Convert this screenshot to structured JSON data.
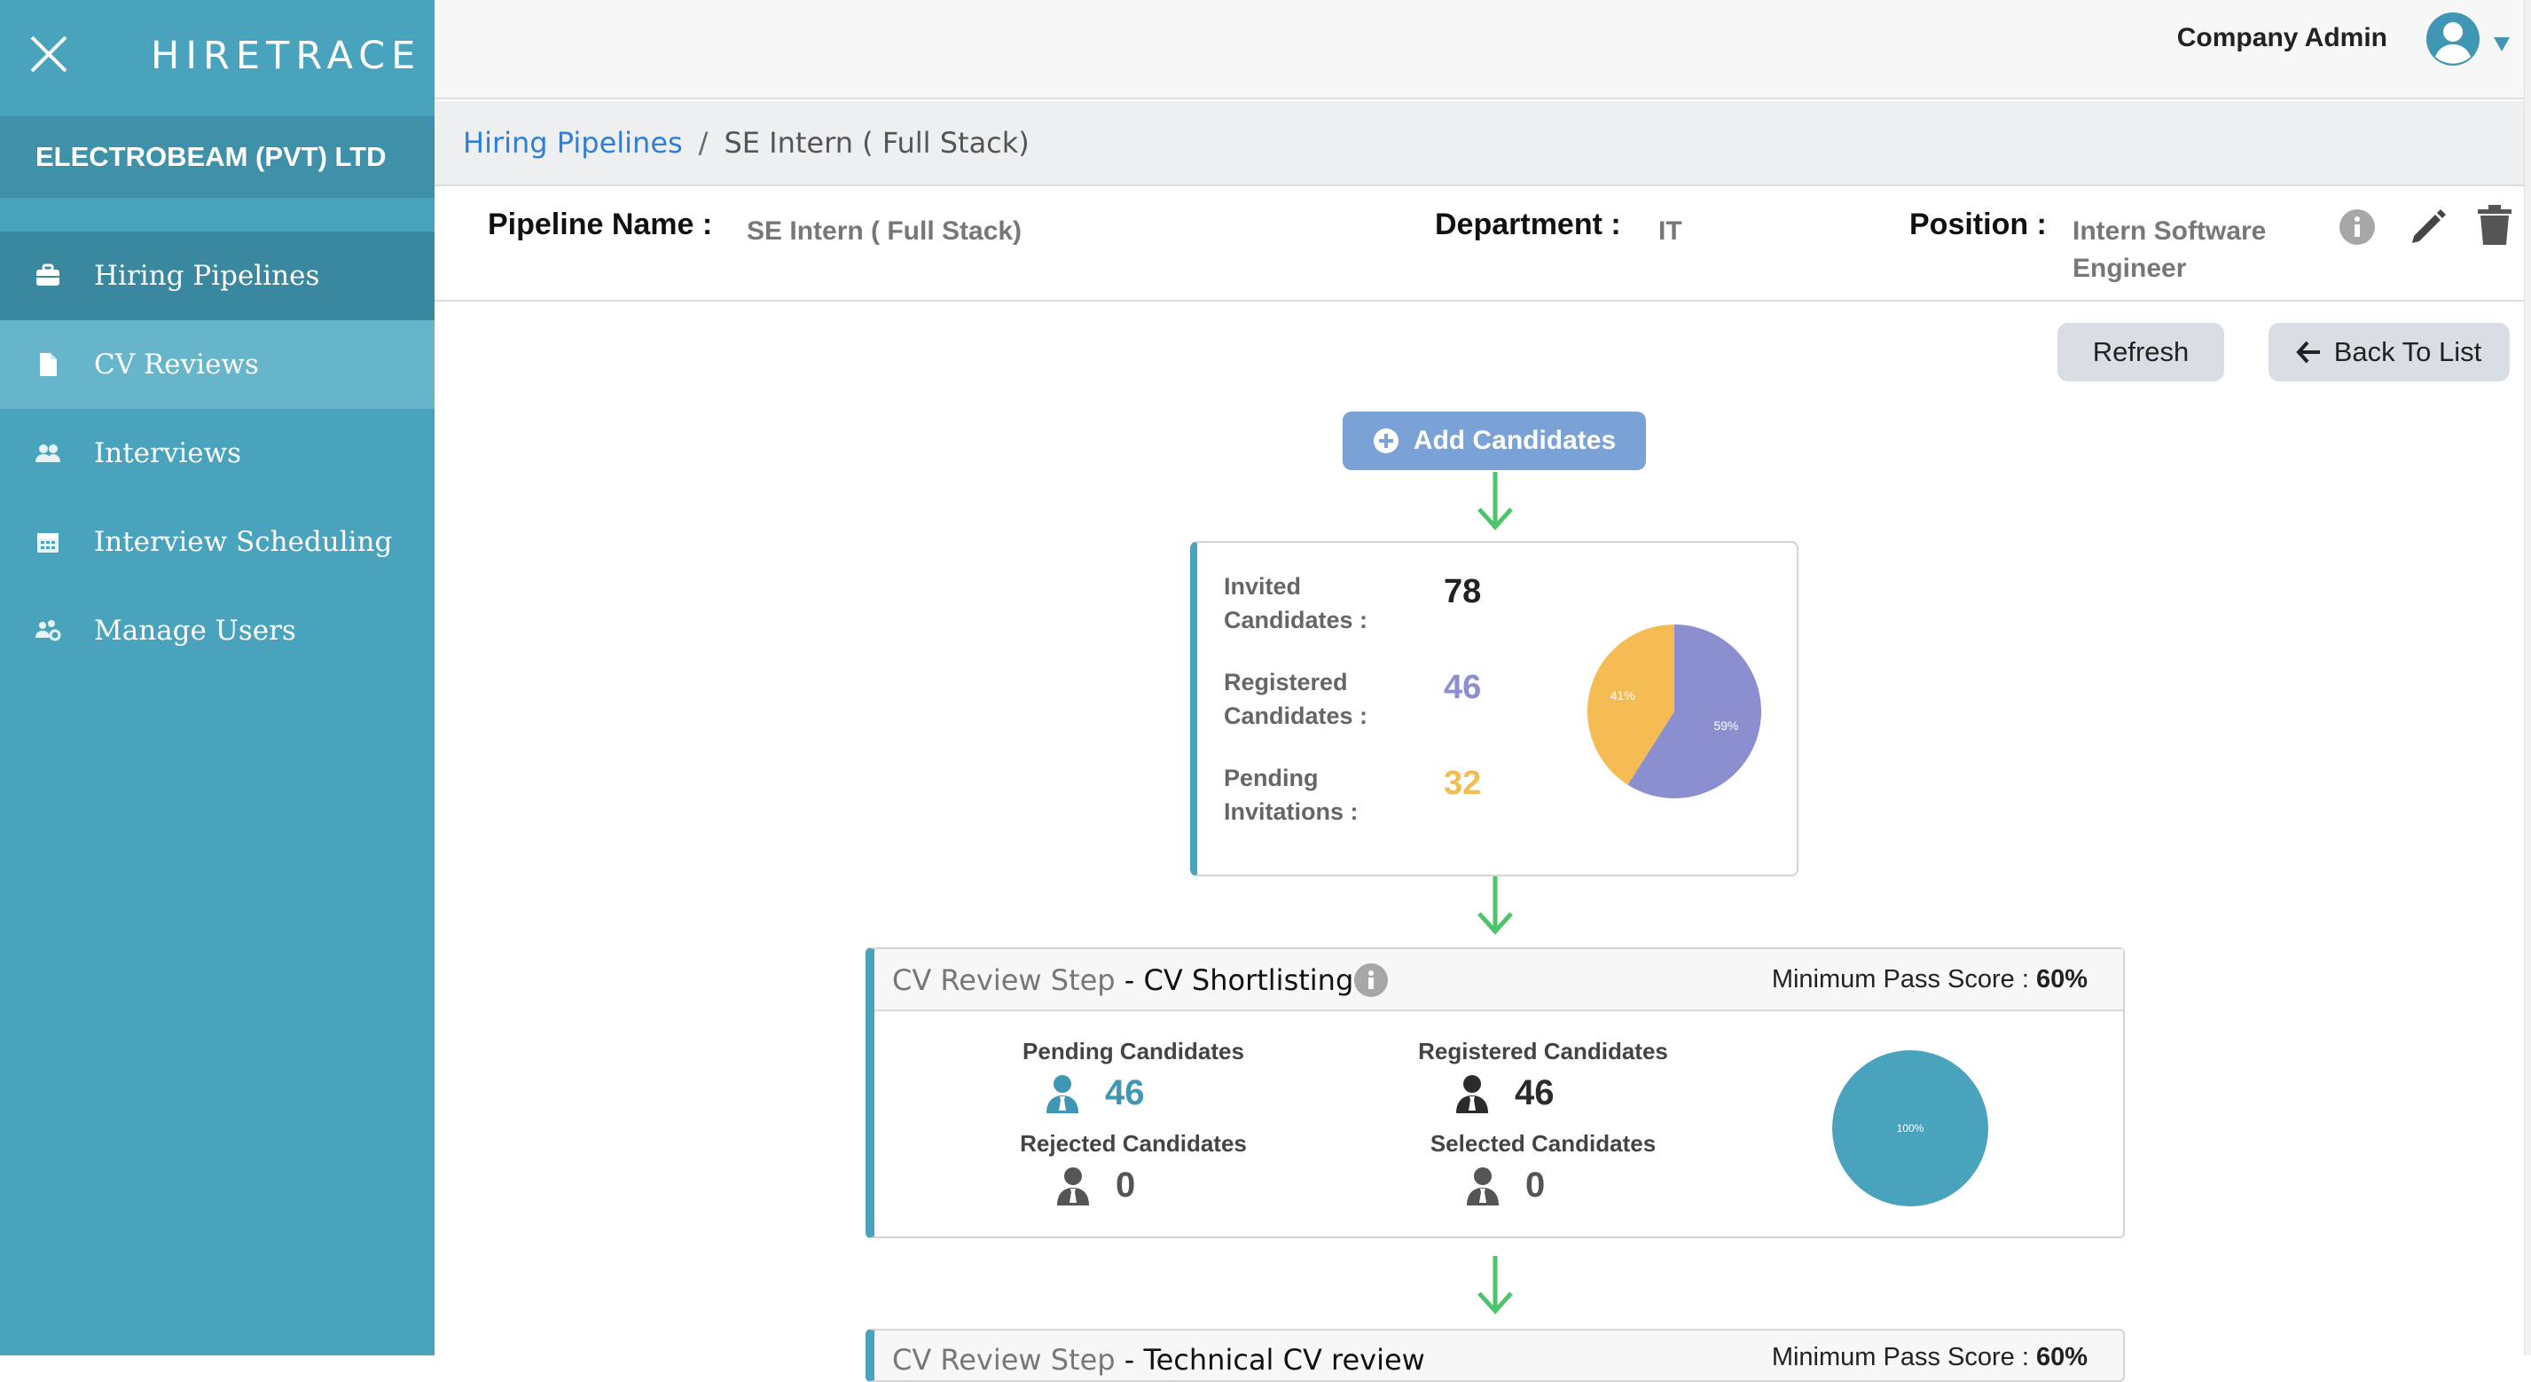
{
  "app": {
    "brand": "HIRETRACE",
    "company": "ELECTROBEAM (PVT) LTD"
  },
  "sidebar": {
    "items": [
      {
        "label": "Hiring Pipelines",
        "icon": "briefcase-icon"
      },
      {
        "label": "CV Reviews",
        "icon": "document-icon"
      },
      {
        "label": "Interviews",
        "icon": "users-icon"
      },
      {
        "label": "Interview Scheduling",
        "icon": "calendar-icon"
      },
      {
        "label": "Manage Users",
        "icon": "users-cog-icon"
      }
    ]
  },
  "header": {
    "user": "Company Admin"
  },
  "breadcrumb": {
    "root": "Hiring Pipelines",
    "separator": "/",
    "current": "SE Intern ( Full Stack)"
  },
  "pipeline": {
    "name_label": "Pipeline Name :",
    "name": "SE Intern ( Full Stack)",
    "department_label": "Department :",
    "department": "IT",
    "position_label": "Position :",
    "position_line1": "Intern Software",
    "position_line2": "Engineer"
  },
  "actions": {
    "refresh": "Refresh",
    "back": "Back To List",
    "add_candidates": "Add Candidates"
  },
  "candidates": {
    "invited_label_1": "Invited",
    "invited_label_2": "Candidates :",
    "invited": "78",
    "registered_label_1": "Registered",
    "registered_label_2": "Candidates :",
    "registered": "46",
    "pending_label_1": "Pending",
    "pending_label_2": "Invitations :",
    "pending": "32",
    "pie": {
      "registered_pct": 59,
      "pending_pct": 41,
      "registered_label": "59%",
      "pending_label": "41%"
    }
  },
  "steps": [
    {
      "prefix": "CV Review Step",
      "name": "- CV Shortlisting",
      "pass_label": "Minimum Pass Score :",
      "pass_value": "60%",
      "pending_label": "Pending Candidates",
      "pending": "46",
      "registered_label": "Registered Candidates",
      "registered": "46",
      "rejected_label": "Rejected Candidates",
      "rejected": "0",
      "selected_label": "Selected Candidates",
      "selected": "0",
      "pie_label": "100%"
    },
    {
      "prefix": "CV Review Step",
      "name": "- Technical CV review",
      "pass_label": "Minimum Pass Score :",
      "pass_value": "60%"
    }
  ],
  "colors": {
    "sidebar": "#4aa3bd",
    "accent": "#4aa3bd",
    "registered": "#8b8fcf",
    "pending": "#f4bc53",
    "link": "#2f7fd6",
    "arrow": "#4cc46a"
  }
}
